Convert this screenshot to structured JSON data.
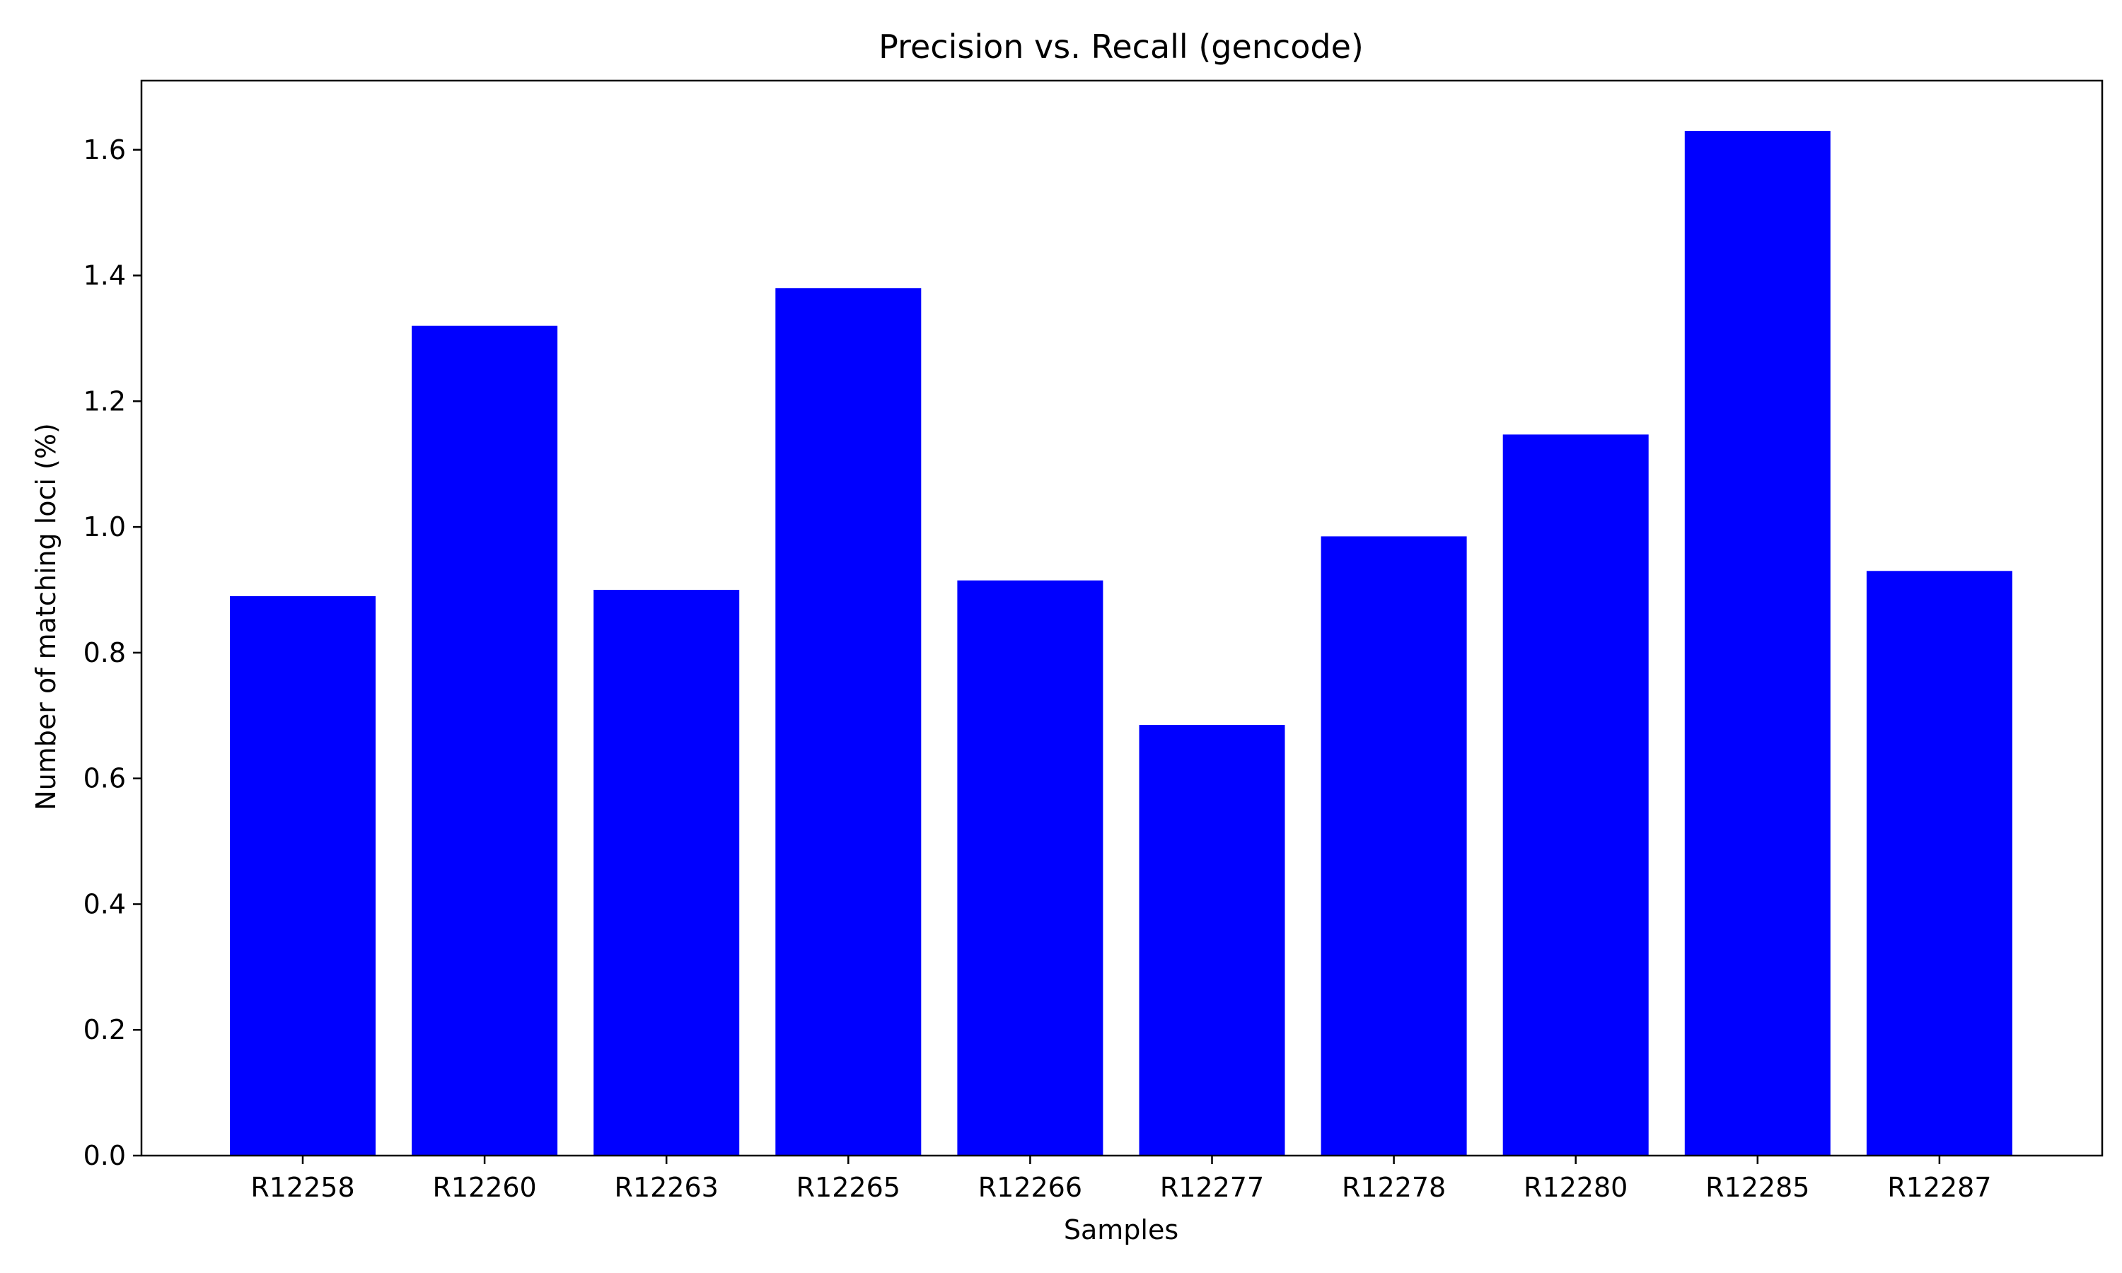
{
  "chart_data": {
    "type": "bar",
    "title": "Precision vs. Recall (gencode)",
    "xlabel": "Samples",
    "ylabel": "Number of matching loci (%)",
    "categories": [
      "R12258",
      "R12260",
      "R12263",
      "R12265",
      "R12266",
      "R12277",
      "R12278",
      "R12280",
      "R12285",
      "R12287"
    ],
    "values": [
      0.89,
      1.32,
      0.9,
      1.38,
      0.915,
      0.685,
      0.985,
      1.147,
      1.63,
      0.93
    ],
    "ylim": [
      0,
      1.71
    ],
    "yticks": [
      0.0,
      0.2,
      0.4,
      0.6,
      0.8,
      1.0,
      1.2,
      1.4,
      1.6
    ],
    "ytick_labels": [
      "0.0",
      "0.2",
      "0.4",
      "0.6",
      "0.8",
      "1.0",
      "1.2",
      "1.4",
      "1.6"
    ],
    "bar_color": "#0000ff",
    "grid": false,
    "legend": false
  }
}
